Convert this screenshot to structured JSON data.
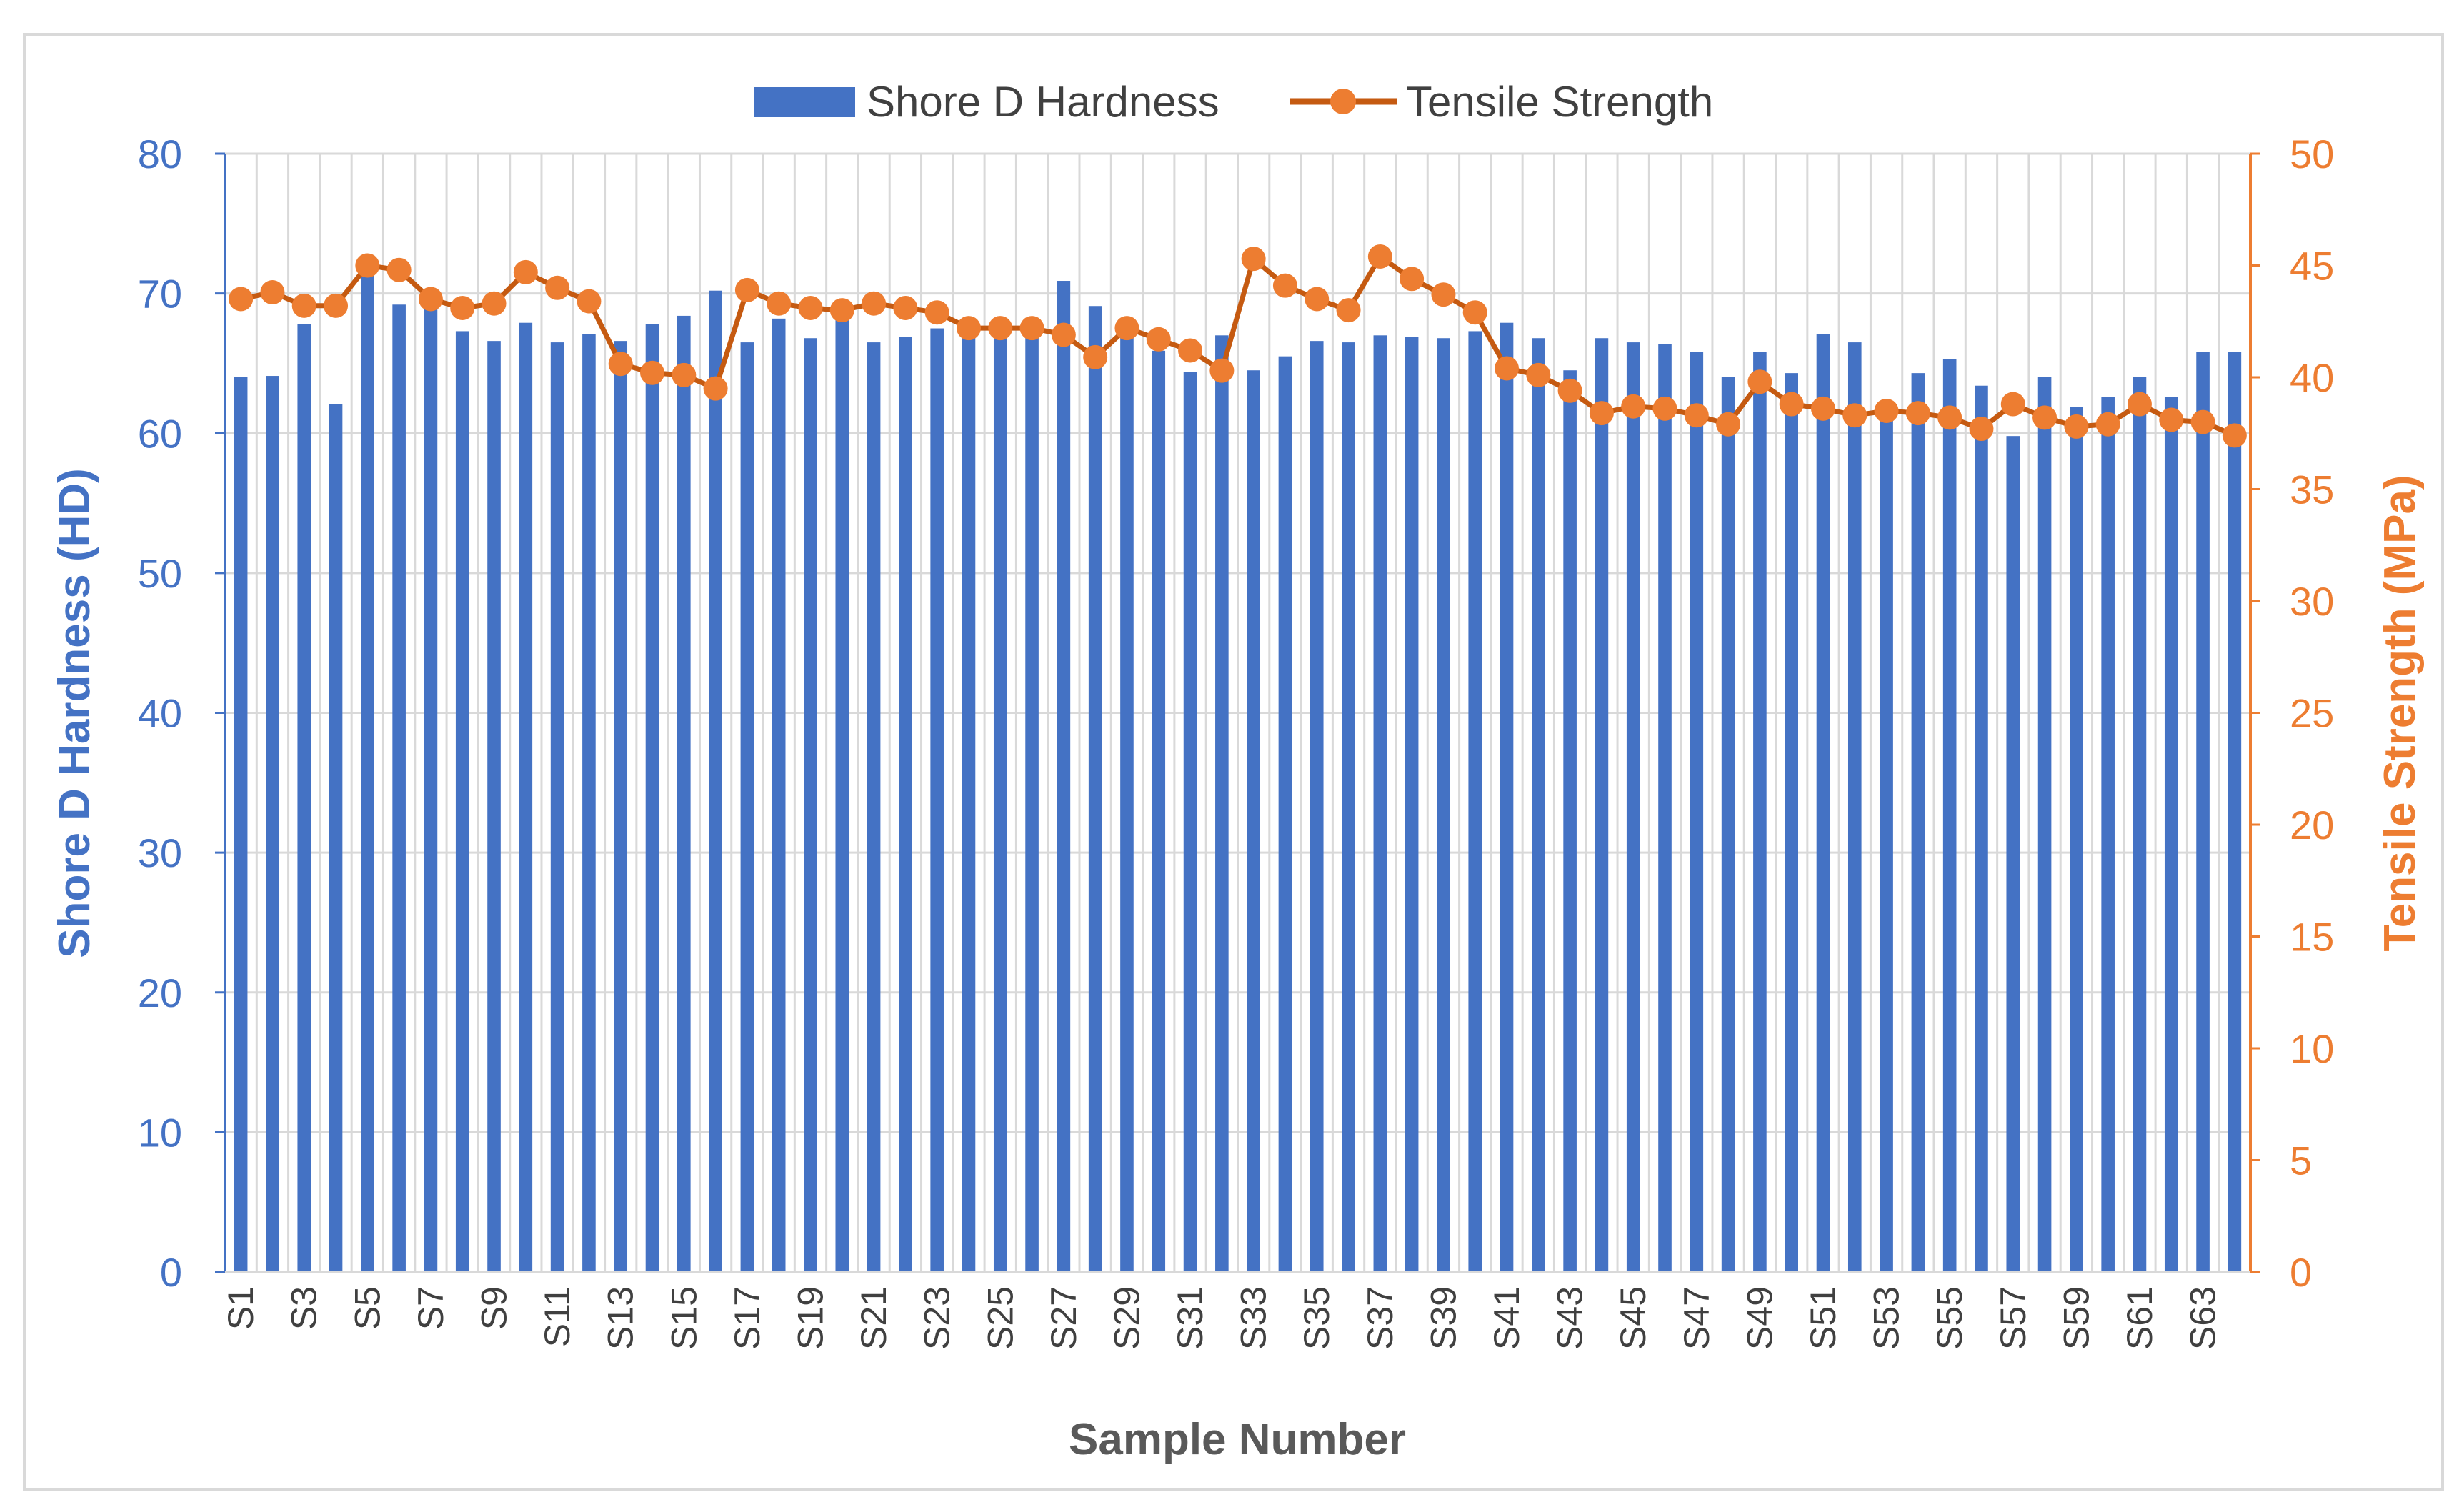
{
  "chart_data": {
    "type": "bar+line",
    "title": "",
    "xlabel": "Sample Number",
    "ylabel_left": "Shore D Hardness (HD)",
    "ylabel_right": "Tensile Strength (MPa)",
    "ylim_left": [
      0,
      80
    ],
    "ylim_right": [
      0,
      50
    ],
    "yticks_left": [
      0,
      10,
      20,
      30,
      40,
      50,
      60,
      70,
      80
    ],
    "yticks_right": [
      0,
      5,
      10,
      15,
      20,
      25,
      30,
      35,
      40,
      45,
      50
    ],
    "grid": true,
    "legend_position": "top-center",
    "categories": [
      "S1",
      "S2",
      "S3",
      "S4",
      "S5",
      "S6",
      "S7",
      "S8",
      "S9",
      "S10",
      "S11",
      "S12",
      "S13",
      "S14",
      "S15",
      "S16",
      "S17",
      "S18",
      "S19",
      "S20",
      "S21",
      "S22",
      "S23",
      "S24",
      "S25",
      "S26",
      "S27",
      "S28",
      "S29",
      "S30",
      "S31",
      "S32",
      "S33",
      "S34",
      "S35",
      "S36",
      "S37",
      "S38",
      "S39",
      "S40",
      "S41",
      "S42",
      "S43",
      "S44",
      "S45",
      "S46",
      "S47",
      "S48",
      "S49",
      "S50",
      "S51",
      "S52",
      "S53",
      "S54",
      "S55",
      "S56",
      "S57",
      "S58",
      "S59",
      "S60",
      "S61",
      "S62",
      "S63",
      "S64"
    ],
    "x_tick_labels": [
      "S1",
      "S3",
      "S5",
      "S7",
      "S9",
      "S11",
      "S13",
      "S15",
      "S17",
      "S19",
      "S21",
      "S23",
      "S25",
      "S27",
      "S29",
      "S31",
      "S33",
      "S35",
      "S37",
      "S39",
      "S41",
      "S43",
      "S45",
      "S47",
      "S49",
      "S51",
      "S53",
      "S55",
      "S57",
      "S59",
      "S61",
      "S63"
    ],
    "series": [
      {
        "name": "Shore D Hardness",
        "type": "bar",
        "axis": "left",
        "color": "#4472C4",
        "values": [
          64.0,
          64.1,
          67.8,
          62.1,
          71.4,
          69.2,
          69.0,
          67.3,
          66.6,
          67.9,
          66.5,
          67.1,
          66.6,
          67.8,
          68.4,
          70.2,
          66.5,
          68.2,
          66.8,
          68.8,
          66.5,
          66.9,
          67.5,
          67.2,
          67.4,
          67.2,
          70.9,
          69.1,
          67.1,
          65.9,
          64.4,
          67.0,
          64.5,
          65.5,
          66.6,
          66.5,
          67.0,
          66.9,
          66.8,
          67.3,
          67.9,
          66.8,
          64.5,
          66.8,
          66.5,
          66.4,
          65.8,
          64.0,
          65.8,
          64.3,
          67.1,
          66.5,
          62.0,
          64.3,
          65.3,
          63.4,
          59.8,
          64.0,
          61.9,
          62.6,
          64.0,
          62.6,
          65.8,
          65.8
        ]
      },
      {
        "name": "Tensile Strength",
        "type": "line",
        "axis": "right",
        "color": "#ED7D31",
        "line_color": "#C55A11",
        "values": [
          43.5,
          43.8,
          43.2,
          43.2,
          45.0,
          44.8,
          43.5,
          43.1,
          43.3,
          44.7,
          44.0,
          43.4,
          40.6,
          40.2,
          40.1,
          39.5,
          43.9,
          43.3,
          43.1,
          43.0,
          43.3,
          43.1,
          42.9,
          42.2,
          42.2,
          42.2,
          41.9,
          40.9,
          42.2,
          41.7,
          41.2,
          40.3,
          45.3,
          44.1,
          43.5,
          43.0,
          45.4,
          44.4,
          43.7,
          42.9,
          40.4,
          40.1,
          39.4,
          38.4,
          38.7,
          38.6,
          38.3,
          37.9,
          39.8,
          38.8,
          38.6,
          38.3,
          38.5,
          38.4,
          38.2,
          37.7,
          38.8,
          38.2,
          37.8,
          37.9,
          38.8,
          38.1,
          38.0,
          37.4
        ]
      }
    ]
  }
}
